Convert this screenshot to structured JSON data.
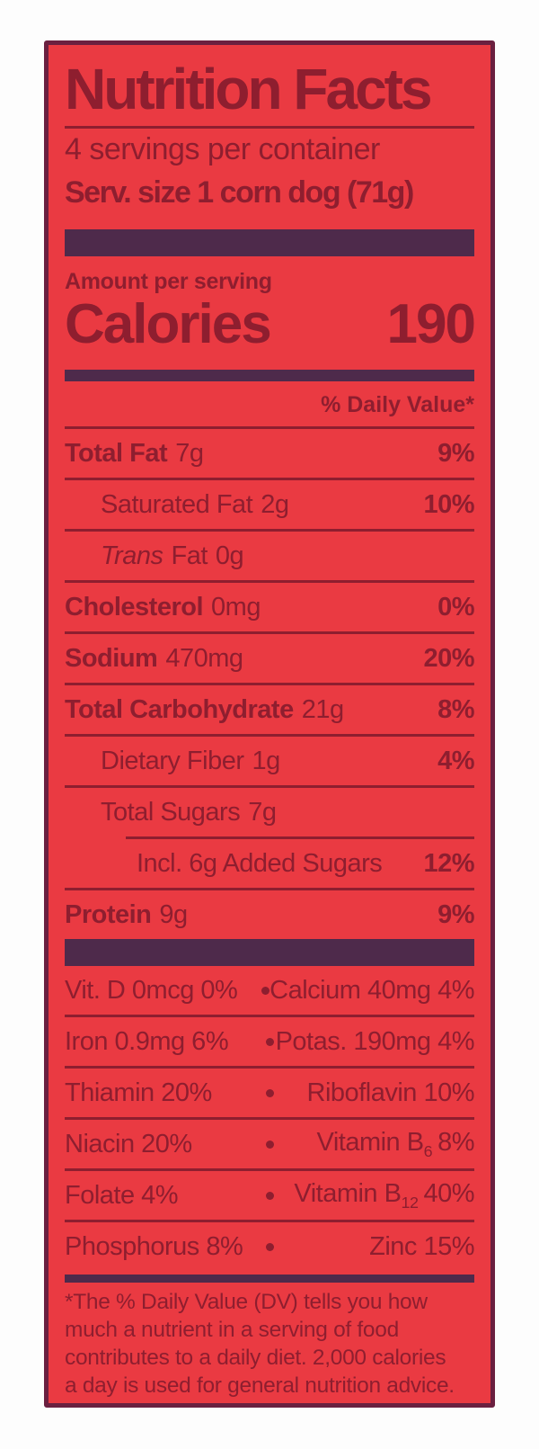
{
  "colors": {
    "background_red": "#ea3a42",
    "text_maroon": "#8e1e2f",
    "bar_plum": "#4e2a4b",
    "border_maroon": "#6b2040"
  },
  "title": "Nutrition Facts",
  "servings_per_container": "4 servings per container",
  "serving_size": "Serv. size 1 corn dog (71g)",
  "amount_per_serving": "Amount per serving",
  "calories": {
    "label": "Calories",
    "value": "190"
  },
  "daily_value_header": "% Daily Value*",
  "bullet": "•",
  "rows": [
    {
      "name": "Total Fat",
      "amount": "7g",
      "dv": "9%"
    },
    {
      "name": "Saturated Fat",
      "amount": "2g",
      "dv": "10%"
    },
    {
      "prefix_italic": "Trans",
      "name": "Fat",
      "amount": "0g",
      "dv": ""
    },
    {
      "name": "Cholesterol",
      "amount": "0mg",
      "dv": "0%"
    },
    {
      "name": "Sodium",
      "amount": "470mg",
      "dv": "20%"
    },
    {
      "name": "Total Carbohydrate",
      "amount": "21g",
      "dv": "8%"
    },
    {
      "name": "Dietary Fiber",
      "amount": "1g",
      "dv": "4%"
    },
    {
      "name": "Total Sugars",
      "amount": "7g",
      "dv": ""
    },
    {
      "name": "Incl. 6g Added Sugars",
      "amount": "",
      "dv": "12%"
    },
    {
      "name": "Protein",
      "amount": "9g",
      "dv": "9%"
    }
  ],
  "micronutrients": [
    {
      "left": "Vit. D 0mcg 0%",
      "right": "Calcium 40mg 4%"
    },
    {
      "left": "Iron 0.9mg 6%",
      "right": "Potas. 190mg 4%"
    },
    {
      "left": "Thiamin 20%",
      "right": "Riboflavin 10%"
    },
    {
      "left": "Niacin 20%",
      "right_main": "Vitamin B",
      "right_sub": "6",
      "right_end": "8%"
    },
    {
      "left": "Folate 4%",
      "right_main": "Vitamin B",
      "right_sub": "12",
      "right_end": "40%"
    },
    {
      "left": "Phosphorus 8%",
      "right": "Zinc 15%"
    }
  ],
  "footnote_lines": [
    "*The % Daily Value (DV) tells you how",
    "much a nutrient in a serving of food",
    "contributes to a daily diet. 2,000 calories",
    "a day is used for general nutrition advice."
  ]
}
